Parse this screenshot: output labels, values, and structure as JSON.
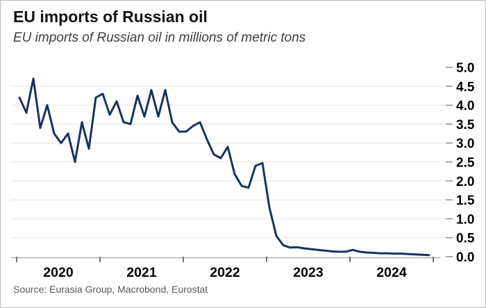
{
  "header": {
    "title": "EU imports of Russian oil",
    "subtitle": "EU imports of Russian oil in millions of metric tons"
  },
  "footer": {
    "source": "Source: Eurasia Group, Macrobond, Eurostat"
  },
  "chart_data": {
    "type": "line",
    "title": "EU imports of Russian oil",
    "subtitle": "EU imports of Russian oil in millions of metric tons",
    "xlabel": "",
    "ylabel": "millions of metric tons",
    "ylim": [
      0.0,
      5.0
    ],
    "y_tick_step": 0.5,
    "y_tick_labels": [
      "0.0",
      "0.5",
      "1.0",
      "1.5",
      "2.0",
      "2.5",
      "3.0",
      "3.5",
      "4.0",
      "4.5",
      "5.0"
    ],
    "y_axis_side": "right",
    "x_tick_labels": [
      "2020",
      "2021",
      "2022",
      "2023",
      "2024"
    ],
    "grid": "horizontal",
    "legend_position": "none",
    "line_color": "#16325f",
    "grid_color": "#e4e4e4",
    "axis_color": "#b0b0b0",
    "tick_color": "#4d4d4d",
    "series": [
      {
        "name": "EU imports of Russian oil (millions of metric tons)",
        "x": [
          "2020-01",
          "2020-02",
          "2020-03",
          "2020-04",
          "2020-05",
          "2020-06",
          "2020-07",
          "2020-08",
          "2020-09",
          "2020-10",
          "2020-11",
          "2020-12",
          "2021-01",
          "2021-02",
          "2021-03",
          "2021-04",
          "2021-05",
          "2021-06",
          "2021-07",
          "2021-08",
          "2021-09",
          "2021-10",
          "2021-11",
          "2021-12",
          "2022-01",
          "2022-02",
          "2022-03",
          "2022-04",
          "2022-05",
          "2022-06",
          "2022-07",
          "2022-08",
          "2022-09",
          "2022-10",
          "2022-11",
          "2022-12",
          "2023-01",
          "2023-02",
          "2023-03",
          "2023-04",
          "2023-05",
          "2023-06",
          "2023-07",
          "2023-08",
          "2023-09",
          "2023-10",
          "2023-11",
          "2023-12",
          "2024-01",
          "2024-02",
          "2024-03",
          "2024-04",
          "2024-05",
          "2024-06",
          "2024-07",
          "2024-08",
          "2024-09",
          "2024-10",
          "2024-11",
          "2024-12"
        ],
        "values": [
          4.2,
          3.8,
          4.7,
          3.4,
          4.0,
          3.25,
          3.0,
          3.25,
          2.5,
          3.55,
          2.85,
          4.2,
          4.3,
          3.75,
          4.1,
          3.55,
          3.5,
          4.25,
          3.7,
          4.4,
          3.7,
          4.4,
          3.55,
          3.3,
          3.3,
          3.45,
          3.55,
          3.1,
          2.7,
          2.6,
          2.9,
          2.18,
          1.87,
          1.82,
          2.4,
          2.47,
          1.3,
          0.55,
          0.3,
          0.24,
          0.25,
          0.22,
          0.2,
          0.18,
          0.16,
          0.14,
          0.13,
          0.13,
          0.18,
          0.13,
          0.11,
          0.1,
          0.09,
          0.09,
          0.08,
          0.08,
          0.07,
          0.06,
          0.05,
          0.04
        ]
      }
    ]
  }
}
